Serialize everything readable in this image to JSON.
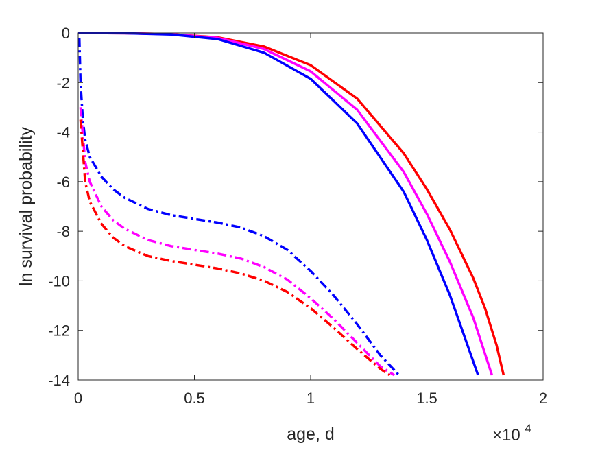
{
  "chart_data": {
    "type": "line",
    "xlabel": "age, d",
    "ylabel": "ln survival probability",
    "x_multiplier": {
      "base": "×10",
      "exponent": "4"
    },
    "xlim": [
      0,
      2
    ],
    "ylim": [
      -14,
      0
    ],
    "x_ticks": [
      "0",
      "0.5",
      "1",
      "1.5",
      "2"
    ],
    "y_ticks": [
      "0",
      "-2",
      "-4",
      "-6",
      "-8",
      "-10",
      "-12",
      "-14"
    ],
    "grid": false,
    "series": [
      {
        "color": "#ff0000",
        "style": "solid",
        "x": [
          0,
          0.2,
          0.4,
          0.6,
          0.8,
          1.0,
          1.2,
          1.4,
          1.5,
          1.6,
          1.7,
          1.75,
          1.8,
          1.83
        ],
        "y": [
          0,
          -0.01,
          -0.05,
          -0.18,
          -0.55,
          -1.3,
          -2.65,
          -4.85,
          -6.3,
          -7.95,
          -9.9,
          -11.1,
          -12.6,
          -13.8
        ]
      },
      {
        "color": "#ff00ff",
        "style": "solid",
        "x": [
          0,
          0.2,
          0.4,
          0.6,
          0.8,
          1.0,
          1.2,
          1.4,
          1.5,
          1.6,
          1.7,
          1.78
        ],
        "y": [
          0,
          -0.01,
          -0.05,
          -0.2,
          -0.65,
          -1.55,
          -3.1,
          -5.6,
          -7.3,
          -9.25,
          -11.5,
          -13.8
        ]
      },
      {
        "color": "#0000ff",
        "style": "solid",
        "x": [
          0,
          0.2,
          0.4,
          0.6,
          0.8,
          1.0,
          1.2,
          1.4,
          1.5,
          1.6,
          1.72
        ],
        "y": [
          0,
          -0.01,
          -0.06,
          -0.25,
          -0.8,
          -1.85,
          -3.65,
          -6.4,
          -8.35,
          -10.6,
          -13.8
        ]
      },
      {
        "color": "#0000ff",
        "style": "dashdot",
        "x": [
          0.005,
          0.01,
          0.02,
          0.03,
          0.05,
          0.1,
          0.15,
          0.2,
          0.3,
          0.4,
          0.5,
          0.6,
          0.7,
          0.8,
          0.9,
          1.0,
          1.1,
          1.2,
          1.3,
          1.35,
          1.38
        ],
        "y": [
          -0.2,
          -2.0,
          -3.5,
          -4.3,
          -5.0,
          -5.8,
          -6.3,
          -6.65,
          -7.1,
          -7.35,
          -7.5,
          -7.65,
          -7.85,
          -8.2,
          -8.75,
          -9.6,
          -10.6,
          -11.75,
          -13.0,
          -13.5,
          -13.8
        ]
      },
      {
        "color": "#ff00ff",
        "style": "dashdot",
        "x": [
          0.01,
          0.03,
          0.05,
          0.1,
          0.15,
          0.2,
          0.3,
          0.4,
          0.5,
          0.6,
          0.7,
          0.8,
          0.9,
          1.0,
          1.1,
          1.2,
          1.3,
          1.36
        ],
        "y": [
          -3.0,
          -5.2,
          -6.0,
          -7.0,
          -7.55,
          -7.9,
          -8.35,
          -8.6,
          -8.75,
          -8.9,
          -9.1,
          -9.45,
          -9.95,
          -10.7,
          -11.55,
          -12.5,
          -13.45,
          -13.8
        ]
      },
      {
        "color": "#ff0000",
        "style": "dashdot",
        "x": [
          0.01,
          0.03,
          0.05,
          0.1,
          0.15,
          0.2,
          0.3,
          0.4,
          0.5,
          0.6,
          0.7,
          0.8,
          0.9,
          1.0,
          1.1,
          1.2,
          1.3,
          1.34
        ],
        "y": [
          -3.5,
          -6.0,
          -6.8,
          -7.7,
          -8.25,
          -8.6,
          -9.0,
          -9.2,
          -9.35,
          -9.5,
          -9.7,
          -10.0,
          -10.45,
          -11.1,
          -11.9,
          -12.75,
          -13.55,
          -13.8
        ]
      }
    ]
  }
}
